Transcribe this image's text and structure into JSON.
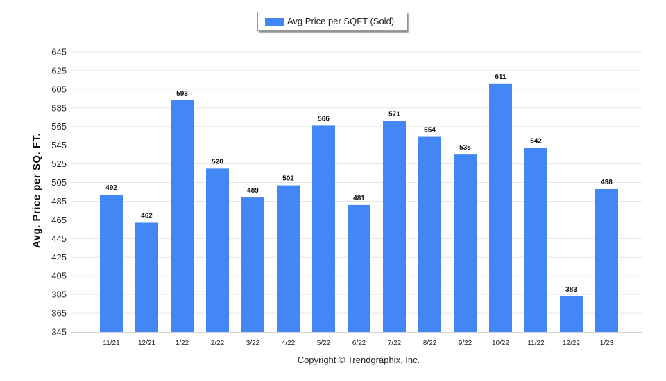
{
  "chart_data": {
    "type": "bar",
    "title": "",
    "xlabel": "",
    "ylabel": "Avg. Price per SQ. FT.",
    "categories": [
      "11/21",
      "12/21",
      "1/22",
      "2/22",
      "3/22",
      "4/22",
      "5/22",
      "6/22",
      "7/22",
      "8/22",
      "9/22",
      "10/22",
      "11/22",
      "12/22",
      "1/23"
    ],
    "series": [
      {
        "name": "Avg Price per SQFT (Sold)",
        "values": [
          492,
          462,
          593,
          520,
          489,
          502,
          566,
          481,
          571,
          554,
          535,
          611,
          542,
          383,
          498
        ],
        "color": "#4287f5"
      }
    ],
    "ylim": [
      345,
      645
    ],
    "yticks": [
      345,
      365,
      385,
      405,
      425,
      445,
      465,
      485,
      505,
      525,
      545,
      565,
      585,
      605,
      625,
      645
    ],
    "grid": true,
    "legend_position": "top-center",
    "data_labels": true
  },
  "footer": {
    "copyright": "Copyright © Trendgraphix, Inc."
  }
}
